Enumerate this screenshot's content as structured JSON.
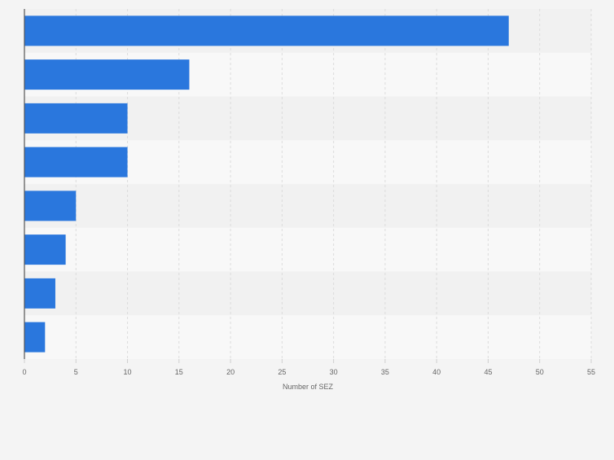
{
  "chart_data": {
    "type": "bar",
    "orientation": "horizontal",
    "categories": [
      "",
      "",
      "",
      "",
      "",
      "",
      "",
      ""
    ],
    "values": [
      47,
      16,
      10,
      10,
      5,
      4,
      3,
      2
    ],
    "xlabel": "Number of SEZ",
    "ylabel": "",
    "xlim": [
      0,
      55
    ],
    "xticks": [
      0,
      5,
      10,
      15,
      20,
      25,
      30,
      35,
      40,
      45,
      50,
      55
    ],
    "grid": true,
    "legend": "none",
    "colors": {
      "bar": "#2a77dd",
      "band_dark": "#f1f1f1",
      "band_light": "#f8f8f8",
      "grid": "#dcdcdc",
      "axis": "#555555",
      "tick_text": "#666666",
      "background": "#f4f4f4"
    }
  }
}
